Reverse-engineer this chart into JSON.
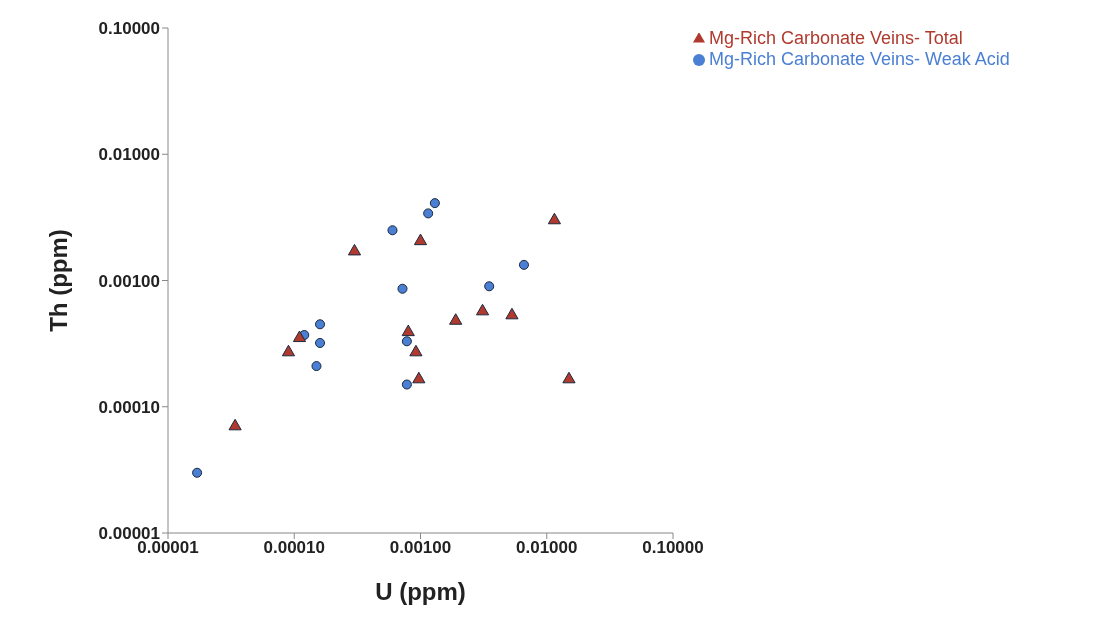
{
  "chart_data": {
    "type": "scatter",
    "xlabel": "U (ppm)",
    "ylabel": "Th (ppm)",
    "log": "xy",
    "grid": false,
    "legend": "top right",
    "xlim": [
      1e-05,
      0.1
    ],
    "xticks": [
      {
        "value": 1e-05,
        "label": "0.00001"
      },
      {
        "value": 0.0001,
        "label": "0.00010"
      },
      {
        "value": 0.001,
        "label": "0.00100"
      },
      {
        "value": 0.01,
        "label": "0.01000"
      },
      {
        "value": 0.1,
        "label": "0.10000"
      }
    ],
    "ylim": [
      1e-05,
      0.1
    ],
    "yticks": [
      {
        "value": 1e-05,
        "label": "0.00001"
      },
      {
        "value": 0.0001,
        "label": "0.00010"
      },
      {
        "value": 0.001,
        "label": "0.00100"
      },
      {
        "value": 0.01,
        "label": "0.01000"
      },
      {
        "value": 0.1,
        "label": "0.10000"
      }
    ],
    "series": [
      {
        "name": "Mg-Rich Carbonate Veins- Weak Acid",
        "color": "#4a7fd4",
        "marker": "circle",
        "x": [
          1.7e-05,
          0.00012,
          0.00016,
          0.00016,
          0.00015,
          0.0006,
          0.00115,
          0.0013,
          0.00072,
          0.00078,
          0.00078,
          0.0035,
          0.0066
        ],
        "values": [
          3e-05,
          0.00037,
          0.00045,
          0.00032,
          0.00021,
          0.0025,
          0.0034,
          0.0041,
          0.00086,
          0.00033,
          0.00015,
          0.0009,
          0.00133
        ]
      },
      {
        "name": "Mg-Rich Carbonate Veins- Total",
        "color": "#b03a2e",
        "marker": "triangle",
        "x": [
          3.4e-05,
          9e-05,
          0.00011,
          0.0003,
          0.001,
          0.0008,
          0.00092,
          0.00097,
          0.0019,
          0.0031,
          0.0053,
          0.0115,
          0.015
        ],
        "values": [
          7e-05,
          0.00027,
          0.00035,
          0.0017,
          0.00205,
          0.00039,
          0.00027,
          0.000165,
          0.00048,
          0.00057,
          0.00053,
          0.003,
          0.000165
        ]
      }
    ]
  }
}
